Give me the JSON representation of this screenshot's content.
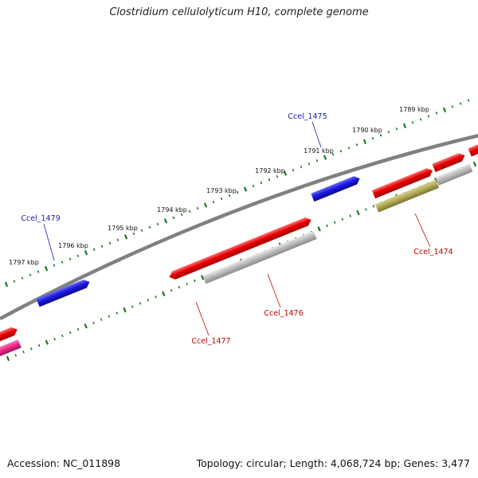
{
  "title": "Clostridium cellulolyticum H10, complete genome",
  "footer": {
    "accession": "Accession: NC_011898",
    "topology": "Topology: circular; Length: 4,068,724 bp; Genes: 3,477"
  },
  "colors": {
    "backbone": "#808080",
    "tick": "#1a7a1a",
    "forward_gene": "#e80000",
    "reverse_gene": "#bdbdbd",
    "highlight_forward": "#1a1ae0",
    "highlight_reverse": "#b3ad5a",
    "pink_gene": "#ee2a8a",
    "forward_label": "#1a1ab4",
    "reverse_label": "#c40000"
  },
  "tick_labels": [
    "1789 kbp",
    "1790 kbp",
    "1791 kbp",
    "1792 kbp",
    "1793 kbp",
    "1794 kbp",
    "1795 kbp",
    "1796 kbp",
    "1797 kbp"
  ],
  "gene_labels": [
    {
      "text": "Ccel_1475",
      "strand": "forward"
    },
    {
      "text": "Ccel_1479",
      "strand": "forward"
    },
    {
      "text": "Ccel_1474",
      "strand": "reverse"
    },
    {
      "text": "Ccel_1476",
      "strand": "reverse"
    },
    {
      "text": "Ccel_1477",
      "strand": "reverse"
    }
  ]
}
